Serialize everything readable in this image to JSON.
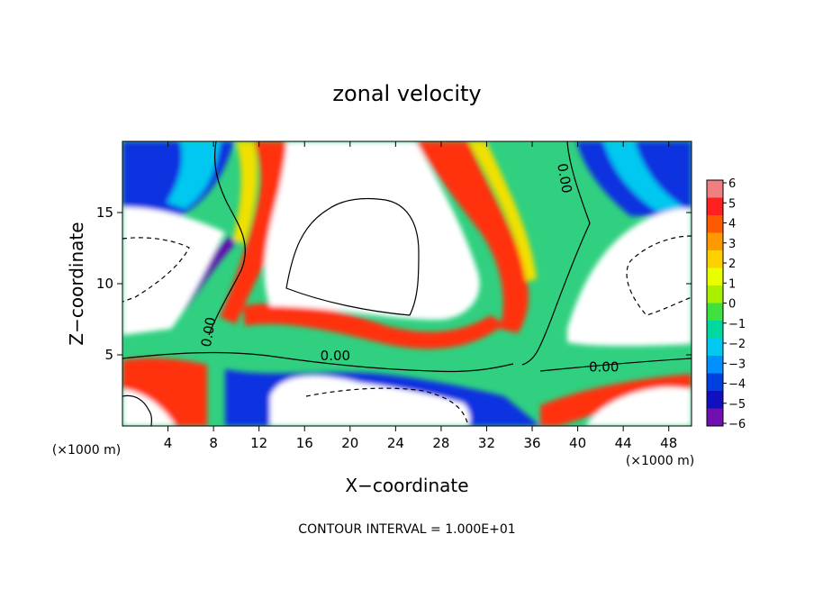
{
  "chart_data": {
    "type": "heatmap",
    "title": "zonal velocity",
    "xlabel": "X−coordinate",
    "ylabel": "Z−coordinate",
    "x_unit_left": "(×1000 m)",
    "x_unit_right": "(×1000 m)",
    "xlim": [
      0,
      50
    ],
    "ylim": [
      0,
      20
    ],
    "x_ticks": [
      4,
      8,
      12,
      16,
      20,
      24,
      28,
      32,
      36,
      40,
      44,
      48
    ],
    "y_ticks": [
      5,
      10,
      15
    ],
    "colorbar": {
      "ticks": [
        6,
        5,
        4,
        3,
        2,
        1,
        0,
        -1,
        -2,
        -3,
        -4,
        -5,
        -6
      ],
      "labels": [
        "6",
        "5",
        "4",
        "3",
        "2",
        "1",
        "0",
        "−1",
        "−2",
        "−3",
        "−4",
        "−5",
        "−6"
      ],
      "colors": [
        "#f08080",
        "#ff2020",
        "#ff5a00",
        "#ff9900",
        "#ffd000",
        "#e8ff00",
        "#a8f000",
        "#40e040",
        "#00d8a0",
        "#00c8f0",
        "#0090ff",
        "#0040e0",
        "#1010c0",
        "#7010b0"
      ]
    },
    "contour_labels": [
      {
        "text": "0.00",
        "x": 7.6,
        "z": 6.6
      },
      {
        "text": "0.00",
        "x": 18.7,
        "z": 4.9
      },
      {
        "text": "0.00",
        "x": 38.8,
        "z": 17.4
      },
      {
        "text": "0.00",
        "x": 42.3,
        "z": 4.1
      }
    ],
    "contour_interval_note": "CONTOUR INTERVAL = 1.000E+01"
  }
}
